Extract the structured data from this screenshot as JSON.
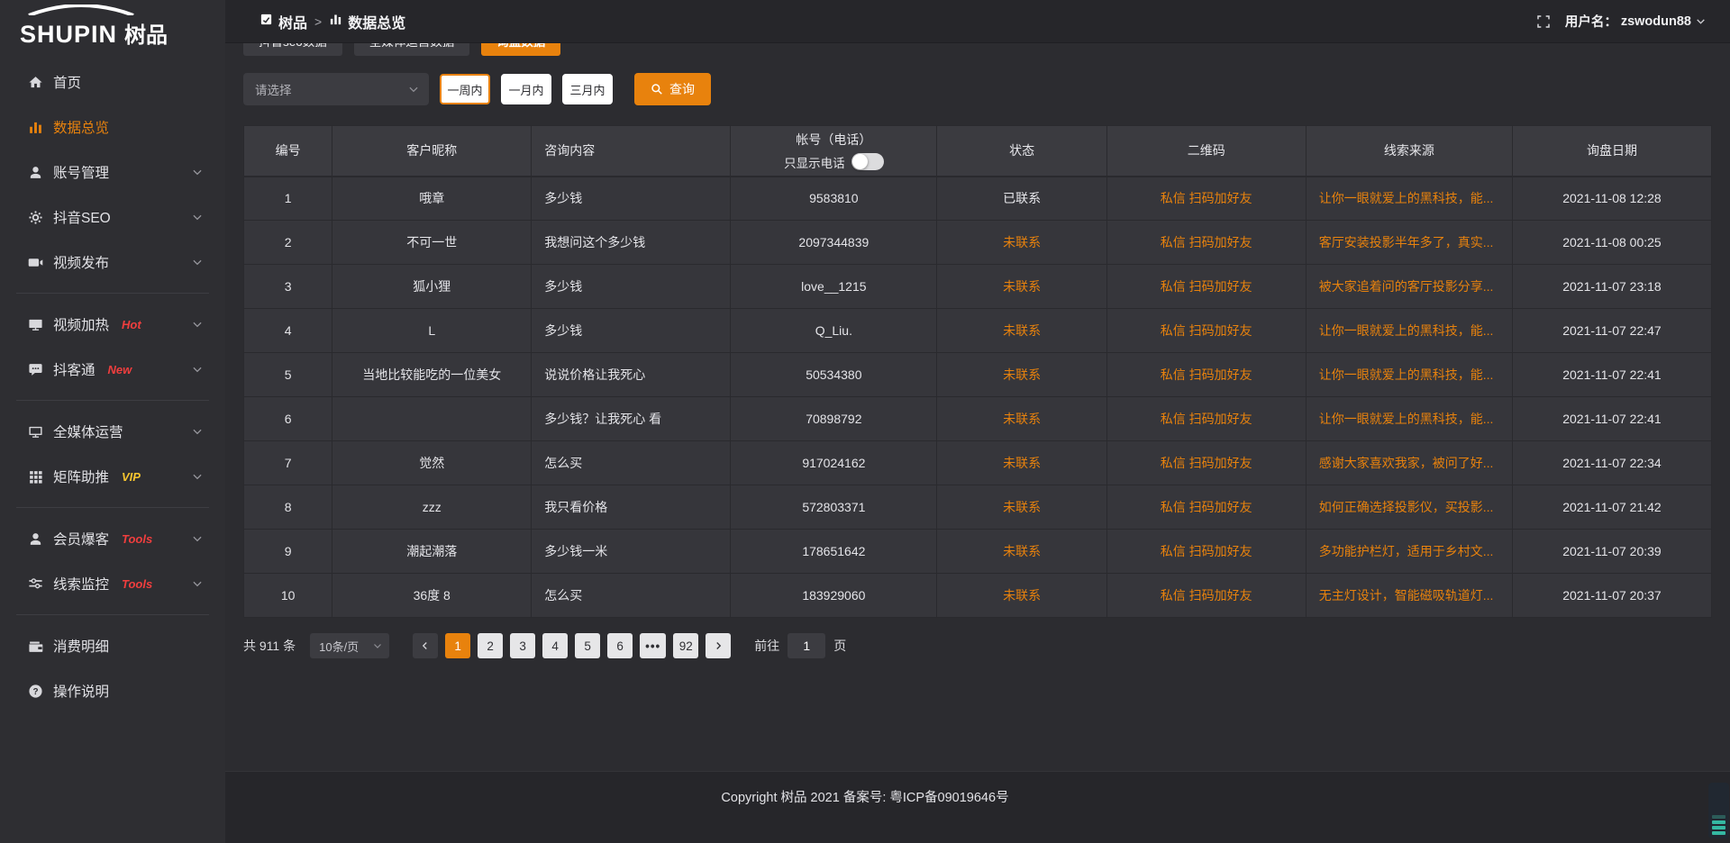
{
  "logo": {
    "latin": "SHUPIN",
    "cjk": "树品"
  },
  "topbar": {
    "breadcrumb_app": "树品",
    "separator": ">",
    "breadcrumb_page": "数据总览",
    "username_label": "用户名：",
    "username": "zswodun88"
  },
  "sidebar": {
    "items": [
      {
        "key": "home",
        "icon": "home-icon",
        "label": "首页"
      },
      {
        "key": "data-overview",
        "icon": "bar-chart-icon",
        "label": "数据总览",
        "active": true
      },
      {
        "key": "account-manage",
        "icon": "user-icon",
        "label": "账号管理",
        "chevron": true
      },
      {
        "key": "douyin-seo",
        "icon": "gear-icon",
        "label": "抖音SEO",
        "chevron": true
      },
      {
        "key": "video-publish",
        "icon": "video-icon",
        "label": "视频发布",
        "chevron": true,
        "divider_after": true
      },
      {
        "key": "video-heat",
        "icon": "monitor-play-icon",
        "label": "视频加热",
        "badge": "Hot",
        "badge_style": "hot",
        "chevron": true
      },
      {
        "key": "douketong",
        "icon": "chat-icon",
        "label": "抖客通",
        "badge": "New",
        "badge_style": "hot",
        "chevron": true,
        "divider_after": true
      },
      {
        "key": "media-operation",
        "icon": "monitor-icon",
        "label": "全媒体运营",
        "chevron": true
      },
      {
        "key": "matrix-boost",
        "icon": "grid-icon",
        "label": "矩阵助推",
        "badge": "VIP",
        "badge_style": "vip",
        "chevron": true,
        "divider_after": true
      },
      {
        "key": "member-baoke",
        "icon": "member-icon",
        "label": "会员爆客",
        "badge": "Tools",
        "badge_style": "hot",
        "chevron": true
      },
      {
        "key": "lead-monitor",
        "icon": "sliders-icon",
        "label": "线索监控",
        "badge": "Tools",
        "badge_style": "hot",
        "chevron": true,
        "divider_after": true
      },
      {
        "key": "consume-detail",
        "icon": "wallet-icon",
        "label": "消费明细"
      },
      {
        "key": "operation-guide",
        "icon": "question-icon",
        "label": "操作说明"
      }
    ]
  },
  "tabs": [
    {
      "key": "douyin-seo-data",
      "label": "抖音seo数据",
      "active": false
    },
    {
      "key": "media-operation-data",
      "label": "全媒体运营数据",
      "active": false
    },
    {
      "key": "inquiry-data",
      "label": "询盘数据",
      "active": true
    }
  ],
  "filters": {
    "select_placeholder": "请选择",
    "periods": [
      {
        "key": "one-week",
        "label": "一周内",
        "active": true
      },
      {
        "key": "one-month",
        "label": "一月内",
        "active": false
      },
      {
        "key": "three-months",
        "label": "三月内",
        "active": false
      }
    ],
    "search_label": "查询"
  },
  "table": {
    "columns": [
      "编号",
      "客户昵称",
      "咨询内容",
      "帐号（电话）",
      "状态",
      "二维码",
      "线索来源",
      "询盘日期"
    ],
    "phone_toggle_label": "只显示电话",
    "rows": [
      {
        "id": "1",
        "nickname": "哦章",
        "content": "多少钱",
        "account": "9583810",
        "status": "已联系",
        "contacted": true,
        "qr": "私信 扫码加好友",
        "source": "让你一眼就爱上的黑科技，能...",
        "date": "2021-11-08 12:28"
      },
      {
        "id": "2",
        "nickname": "不可一世",
        "content": "我想问这个多少钱",
        "account": "2097344839",
        "status": "未联系",
        "contacted": false,
        "qr": "私信 扫码加好友",
        "source": "客厅安装投影半年多了，真实...",
        "date": "2021-11-08 00:25"
      },
      {
        "id": "3",
        "nickname": "狐小狸",
        "content": "多少钱",
        "account": "love__1215",
        "status": "未联系",
        "contacted": false,
        "qr": "私信 扫码加好友",
        "source": "被大家追着问的客厅投影分享...",
        "date": "2021-11-07 23:18"
      },
      {
        "id": "4",
        "nickname": "L",
        "content": "多少钱",
        "account": "Q_Liu.",
        "status": "未联系",
        "contacted": false,
        "qr": "私信 扫码加好友",
        "source": "让你一眼就爱上的黑科技，能...",
        "date": "2021-11-07 22:47"
      },
      {
        "id": "5",
        "nickname": "当地比较能吃的一位美女",
        "content": "说说价格让我死心",
        "account": "50534380",
        "status": "未联系",
        "contacted": false,
        "qr": "私信 扫码加好友",
        "source": "让你一眼就爱上的黑科技，能...",
        "date": "2021-11-07 22:41"
      },
      {
        "id": "6",
        "nickname": "",
        "content": "多少钱？让我死心 看",
        "account": "70898792",
        "status": "未联系",
        "contacted": false,
        "qr": "私信 扫码加好友",
        "source": "让你一眼就爱上的黑科技，能...",
        "date": "2021-11-07 22:41"
      },
      {
        "id": "7",
        "nickname": "觉然",
        "content": "怎么买",
        "account": "917024162",
        "status": "未联系",
        "contacted": false,
        "qr": "私信 扫码加好友",
        "source": "感谢大家喜欢我家，被问了好...",
        "date": "2021-11-07 22:34"
      },
      {
        "id": "8",
        "nickname": "zzz",
        "content": "我只看价格",
        "account": "572803371",
        "status": "未联系",
        "contacted": false,
        "qr": "私信 扫码加好友",
        "source": "如何正确选择投影仪，买投影...",
        "date": "2021-11-07 21:42"
      },
      {
        "id": "9",
        "nickname": "潮起潮落",
        "content": "多少钱一米",
        "account": "178651642",
        "status": "未联系",
        "contacted": false,
        "qr": "私信 扫码加好友",
        "source": "多功能护栏灯，适用于乡村文...",
        "date": "2021-11-07 20:39"
      },
      {
        "id": "10",
        "nickname": "36度 8",
        "content": "怎么买",
        "account": "183929060",
        "status": "未联系",
        "contacted": false,
        "qr": "私信 扫码加好友",
        "source": "无主灯设计，智能磁吸轨道灯...",
        "date": "2021-11-07 20:37"
      }
    ]
  },
  "pagination": {
    "total_label": "共 911 条",
    "page_size": "10条/页",
    "pages": [
      "1",
      "2",
      "3",
      "4",
      "5",
      "6",
      "•••",
      "92"
    ],
    "active_page": "1",
    "goto_label": "前往",
    "goto_value": "1",
    "goto_suffix": "页"
  },
  "footer": {
    "copyright": "Copyright 树品 2021 备案号: 粤ICP备09019646号"
  },
  "colors": {
    "accent": "#e8820d",
    "hot_badge": "#f03e3e",
    "vip_badge": "#f7c52f"
  }
}
